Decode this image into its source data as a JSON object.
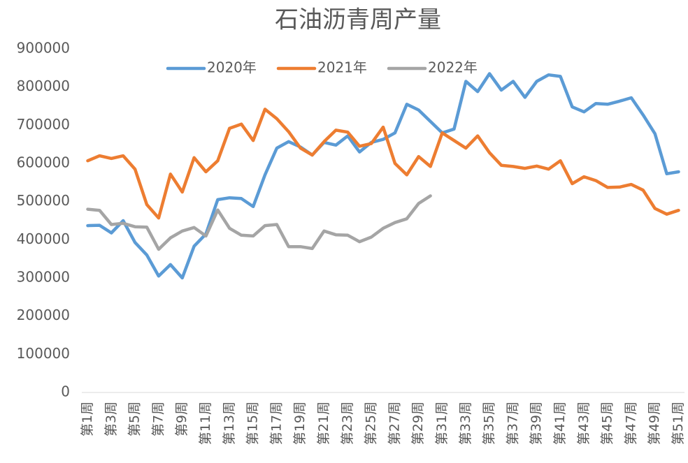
{
  "chart_data": {
    "type": "line",
    "title": "石油沥青周产量",
    "categories": [
      "第1周",
      null,
      "第3周",
      null,
      "第5周",
      null,
      "第7周",
      null,
      "第9周",
      null,
      "第11周",
      null,
      "第13周",
      null,
      "第15周",
      null,
      "第17周",
      null,
      "第19周",
      null,
      "第21周",
      null,
      "第23周",
      null,
      "第25周",
      null,
      "第27周",
      null,
      "第29周",
      null,
      "第31周",
      null,
      "第33周",
      null,
      "第35周",
      null,
      "第37周",
      null,
      "第39周",
      null,
      "第41周",
      null,
      "第43周",
      null,
      "第45周",
      null,
      "第47周",
      null,
      "第49周",
      null,
      "第51周"
    ],
    "series": [
      {
        "name": "2020年",
        "color": "#5b9bd5",
        "values": [
          437000,
          438000,
          418000,
          450000,
          393000,
          360000,
          305000,
          335000,
          300000,
          383000,
          415000,
          505000,
          510000,
          508000,
          487000,
          570000,
          640000,
          657000,
          643000,
          622000,
          655000,
          648000,
          672000,
          630000,
          655000,
          663000,
          680000,
          755000,
          740000,
          710000,
          680000,
          690000,
          815000,
          788000,
          835000,
          792000,
          815000,
          773000,
          815000,
          832000,
          828000,
          748000,
          735000,
          757000,
          755000,
          763000,
          772000,
          727000,
          678000,
          573000,
          578000
        ]
      },
      {
        "name": "2021年",
        "color": "#ed7d31",
        "values": [
          607000,
          620000,
          613000,
          620000,
          585000,
          492000,
          457000,
          572000,
          525000,
          615000,
          578000,
          607000,
          692000,
          703000,
          660000,
          742000,
          717000,
          683000,
          640000,
          622000,
          657000,
          687000,
          682000,
          645000,
          652000,
          695000,
          600000,
          570000,
          618000,
          592000,
          680000,
          660000,
          640000,
          672000,
          628000,
          595000,
          592000,
          587000,
          593000,
          585000,
          607000,
          547000,
          565000,
          555000,
          537000,
          538000,
          545000,
          530000,
          482000,
          467000,
          477000
        ]
      },
      {
        "name": "2022年",
        "color": "#a5a5a5",
        "values": [
          480000,
          477000,
          440000,
          443000,
          434000,
          433000,
          375000,
          405000,
          423000,
          432000,
          410000,
          478000,
          430000,
          412000,
          410000,
          437000,
          440000,
          382000,
          382000,
          377000,
          423000,
          413000,
          412000,
          395000,
          407000,
          430000,
          445000,
          455000,
          495000,
          515000,
          null,
          null,
          null,
          null,
          null,
          null,
          null,
          null,
          null,
          null,
          null,
          null,
          null,
          null,
          null,
          null,
          null,
          null,
          null,
          null,
          null
        ]
      }
    ],
    "ylim": [
      0,
      900000
    ],
    "yticks": [
      0,
      100000,
      200000,
      300000,
      400000,
      500000,
      600000,
      700000,
      800000,
      900000
    ],
    "legend": "top"
  }
}
